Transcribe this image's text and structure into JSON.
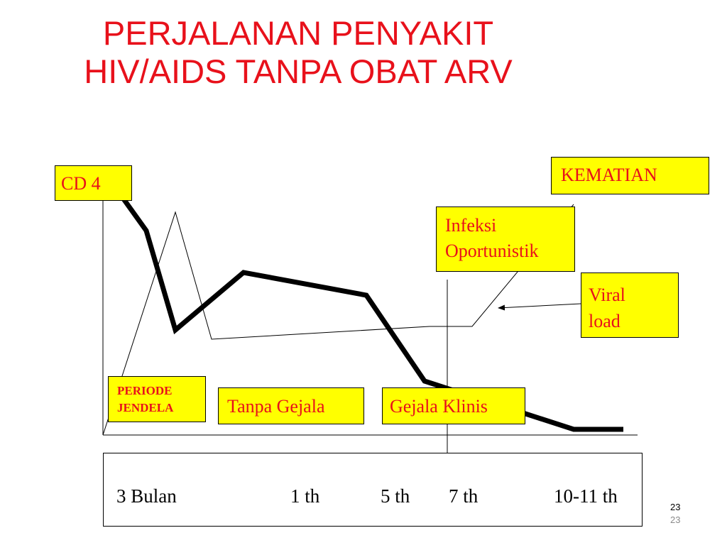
{
  "title": {
    "line1": "PERJALANAN PENYAKIT",
    "line2": "HIV/AIDS TANPA OBAT ARV"
  },
  "labels": {
    "cd4": "CD 4",
    "kematian": "KEMATIAN",
    "infeksi_line1": "Infeksi",
    "infeksi_line2": "Oportunistik",
    "viral_line1": "Viral",
    "viral_line2": "load",
    "periode_line1": "PERIODE",
    "periode_line2": "JENDELA",
    "tanpa_gejala": "Tanpa Gejala",
    "gejala_klinis": "Gejala Klinis"
  },
  "timeline": {
    "ticks": [
      "3 Bulan",
      "1 th",
      "5 th",
      "7 th",
      "10-11 th"
    ]
  },
  "slide_number": {
    "top": "23",
    "bottom": "23"
  },
  "colors": {
    "title": "#e8111b",
    "box_fill": "#ffff00",
    "box_text": "#e8111b",
    "line": "#000000"
  }
}
